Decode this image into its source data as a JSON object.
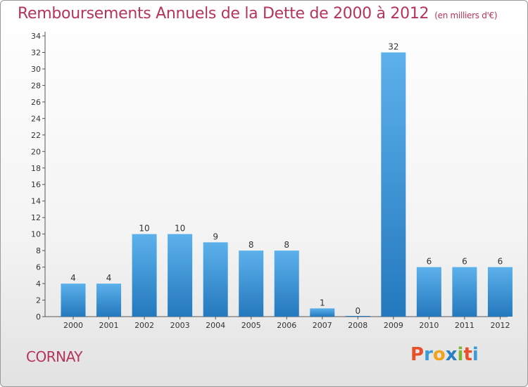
{
  "chart_data": {
    "type": "bar",
    "title": "Remboursements Annuels de la Dette de 2000 à 2012",
    "subtitle": "(en milliers d'€)",
    "categories": [
      "2000",
      "2001",
      "2002",
      "2003",
      "2004",
      "2005",
      "2006",
      "2007",
      "2008",
      "2009",
      "2010",
      "2011",
      "2012"
    ],
    "values": [
      4,
      4,
      10,
      10,
      9,
      8,
      8,
      1,
      0,
      32,
      6,
      6,
      6
    ],
    "ylim": [
      0,
      34
    ],
    "yticks": [
      0,
      2,
      4,
      6,
      8,
      10,
      12,
      14,
      16,
      18,
      20,
      22,
      24,
      26,
      28,
      30,
      32,
      34
    ],
    "xlabel": "",
    "ylabel": "",
    "grid": false,
    "bar_color": "#3a95d8"
  },
  "footer": {
    "commune": "CORNAY"
  },
  "logo": {
    "text": "Proxiti",
    "letters": [
      "P",
      "r",
      "o",
      "x",
      "i",
      "t",
      "i"
    ],
    "colors": [
      "#e8502a",
      "#3b9ad9",
      "#f2a31b",
      "#2a7ec2",
      "#7cb82f",
      "#e8502a",
      "#3b9ad9"
    ]
  }
}
